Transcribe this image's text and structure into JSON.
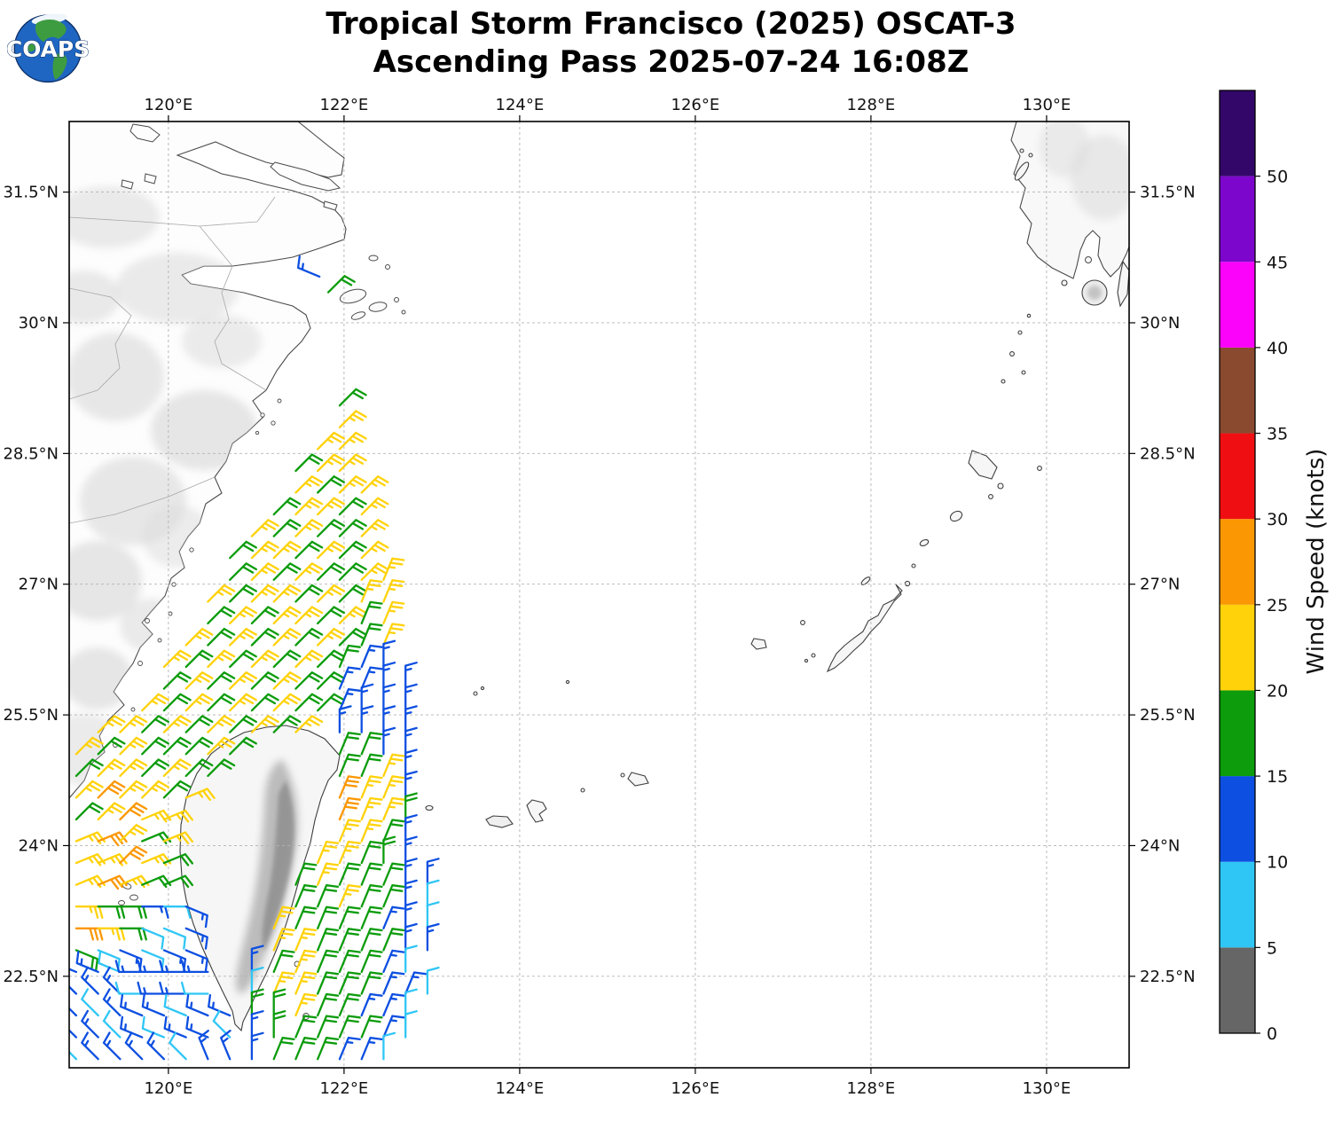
{
  "logo": {
    "text": "COAPS"
  },
  "title": {
    "line1": "Tropical Storm Francisco (2025) OSCAT-3",
    "line2": "Ascending Pass 2025-07-24 16:08Z"
  },
  "axes": {
    "x_ticks": [
      {
        "value": 120,
        "label": "120°E"
      },
      {
        "value": 122,
        "label": "122°E"
      },
      {
        "value": 124,
        "label": "124°E"
      },
      {
        "value": 126,
        "label": "126°E"
      },
      {
        "value": 128,
        "label": "128°E"
      },
      {
        "value": 130,
        "label": "130°E"
      }
    ],
    "y_ticks": [
      {
        "value": 31.5,
        "label": "31.5°N"
      },
      {
        "value": 30,
        "label": "30°N"
      },
      {
        "value": 28.5,
        "label": "28.5°N"
      },
      {
        "value": 27,
        "label": "27°N"
      },
      {
        "value": 25.5,
        "label": "25.5°N"
      },
      {
        "value": 24,
        "label": "24°N"
      },
      {
        "value": 22.5,
        "label": "22.5°N"
      }
    ],
    "lon_range": [
      118.87,
      130.94
    ],
    "lat_range": [
      21.45,
      32.31
    ]
  },
  "colorbar": {
    "label": "Wind Speed (knots)",
    "value_range": [
      0,
      55
    ],
    "ticks": [
      {
        "value": 0,
        "label": "0"
      },
      {
        "value": 5,
        "label": "5"
      },
      {
        "value": 10,
        "label": "10"
      },
      {
        "value": 15,
        "label": "15"
      },
      {
        "value": 20,
        "label": "20"
      },
      {
        "value": 25,
        "label": "25"
      },
      {
        "value": 30,
        "label": "30"
      },
      {
        "value": 35,
        "label": "35"
      },
      {
        "value": 40,
        "label": "40"
      },
      {
        "value": 45,
        "label": "45"
      },
      {
        "value": 50,
        "label": "50"
      }
    ],
    "segments": [
      {
        "from": 0,
        "to": 5,
        "color": "#666666"
      },
      {
        "from": 5,
        "to": 10,
        "color": "#2fc6f5"
      },
      {
        "from": 10,
        "to": 15,
        "color": "#0d4fe1"
      },
      {
        "from": 15,
        "to": 20,
        "color": "#0c9c0c"
      },
      {
        "from": 20,
        "to": 25,
        "color": "#ffd20a"
      },
      {
        "from": 25,
        "to": 30,
        "color": "#fb9702"
      },
      {
        "from": 30,
        "to": 35,
        "color": "#ef0f12"
      },
      {
        "from": 35,
        "to": 40,
        "color": "#8a4a30"
      },
      {
        "from": 40,
        "to": 45,
        "color": "#fb02fb"
      },
      {
        "from": 45,
        "to": 50,
        "color": "#7d06cd"
      },
      {
        "from": 50,
        "to": 55,
        "color": "#330769"
      }
    ]
  },
  "chart_data": {
    "type": "wind-barb-map",
    "storm": "Tropical Storm Francisco (2025)",
    "satellite": "OSCAT-3",
    "pass": "Ascending Pass 2025-07-24 16:08Z",
    "speed_legend_knots": {
      "c": "5-10",
      "b": "10-15",
      "g": "15-20",
      "y": "20-25",
      "o": "25-30"
    },
    "palette": {
      "c": "#2fc6f5",
      "b": "#0d4fe1",
      "g": "#0c9c0c",
      "y": "#ffd20a",
      "o": "#fb9702"
    },
    "barb_grid": {
      "lon_start": 118.95,
      "dlon": 0.25,
      "lat_start": 29.05,
      "dlat": -0.25,
      "cols": 19,
      "rows": 31,
      "dir_units_deg": 22.5,
      "speed_rows": [
        "............g......",
        "............y......",
        "...........yy......",
        "..........gyy......",
        "..........ygyy.....",
        ".........gyygy.....",
        "........ygyggy.....",
        ".......gyygygy.....",
        ".......gygyggyy....",
        "......ygyygygyy....",
        "......gygyygygy....",
        ".....ygygygyggy....",
        "....ygygygyggbb....",
        "....gygygyggbbbb...",
        "...ygygygyggbbbb...",
        ".yygygygygy.bbbb...",
        "ygygggyg....ggbb...",
        "gyygygg.....ggyb...",
        "yoyygy......oyyb...",
        "gyoyy.......oyyg...",
        "yoygy.......yygb...",
        "yyoyg......yyggb...",
        "yoygg.....gygggbb..",
        "yggbcb....ggyggbc..",
        "oygccb...yggggbbc..",
        "gcbcbb...yyggggbb..",
        "bbcbbbb.bgygggbc...",
        "bbbcbbc.cyygggbbc..",
        "bcbbbcbbggyggbbc...",
        "bbcbcbbcbgggggbc...",
        "cbbbbcbbbgggbbc...."
      ],
      "dir_rows": [
        "............2......",
        "............2......",
        "...........22......",
        "..........222......",
        "..........2222.....",
        ".........22222.....",
        "........222222.....",
        ".......2222222.....",
        ".......22222221....",
        "......222222211....",
        "......222222211....",
        ".....2222222211....",
        "....22222222110....",
        "....222222221100...",
        "...2222222221000...",
        ".2222222222.0000...",
        "22222222....1100...",
        "2222222.....1110...",
        "222223......1110...",
        "22233.......1110...",
        "33233.......1110...",
        "33233......11100...",
        "33333.....1111100..",
        "444445....1111100..",
        "444555...11111100..",
        "555555...11111100..",
        "DDDCCCC.01111110...",
        "EEECCCC.011111110..",
        "EEEDDDDD00111110...",
        "EEEDDDDE00111110...",
        "EEEEEEFF0111110...."
      ]
    },
    "extra_barbs": [
      {
        "lon": 121.72,
        "lat": 30.53,
        "speed": "b",
        "dir_deg": 292.5
      },
      {
        "lon": 121.82,
        "lat": 30.35,
        "speed": "g",
        "dir_deg": 45
      }
    ]
  }
}
